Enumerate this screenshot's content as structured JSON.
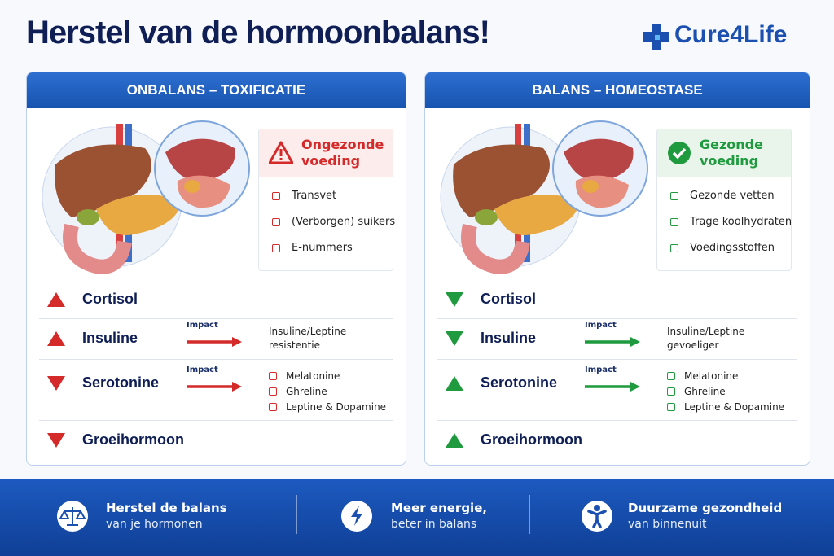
{
  "header": {
    "title": "Herstel van de hormoonbalans!",
    "brand": "Cure4Life"
  },
  "panels": [
    {
      "title": "ONBALANS – TOXIFICATIE",
      "color": "#d42a2a",
      "arrow_color": "#d42a2a",
      "diet": {
        "title": "Ongezonde voeding",
        "status": "warning",
        "items": [
          "Transvet",
          "(Verborgen) suikers",
          "E-nummers"
        ]
      },
      "hormones": [
        {
          "name": "Cortisol",
          "direction": "up"
        },
        {
          "name": "Insuline",
          "direction": "up",
          "impact": "Impact",
          "effect": "Insuline/Leptine resistentie"
        },
        {
          "name": "Serotonine",
          "direction": "down",
          "impact": "Impact",
          "effect_items": [
            "Melatonine",
            "Ghreline",
            "Leptine & Dopamine"
          ]
        },
        {
          "name": "Groeihormoon",
          "direction": "down"
        }
      ]
    },
    {
      "title": "BALANS – HOMEOSTASE",
      "color": "#1f9a3e",
      "arrow_color": "#1f9a3e",
      "diet": {
        "title": "Gezonde voeding",
        "status": "ok",
        "items": [
          "Gezonde vetten",
          "Trage koolhydraten",
          "Voedingsstoffen"
        ]
      },
      "hormones": [
        {
          "name": "Cortisol",
          "direction": "down"
        },
        {
          "name": "Insuline",
          "direction": "down",
          "impact": "Impact",
          "effect": "Insuline/Leptine gevoeliger"
        },
        {
          "name": "Serotonine",
          "direction": "up",
          "impact": "Impact",
          "effect_items": [
            "Melatonine",
            "Ghreline",
            "Leptine & Dopamine"
          ]
        },
        {
          "name": "Groeihormoon",
          "direction": "up"
        }
      ]
    }
  ],
  "footer": [
    {
      "title": "Herstel de balans",
      "subtitle": "van je hormonen",
      "icon": "scale"
    },
    {
      "title": "Meer energie,",
      "subtitle": "beter in balans",
      "icon": "bolt"
    },
    {
      "title": "Duurzame gezondheid",
      "subtitle": "van binnenuit",
      "icon": "person"
    }
  ]
}
